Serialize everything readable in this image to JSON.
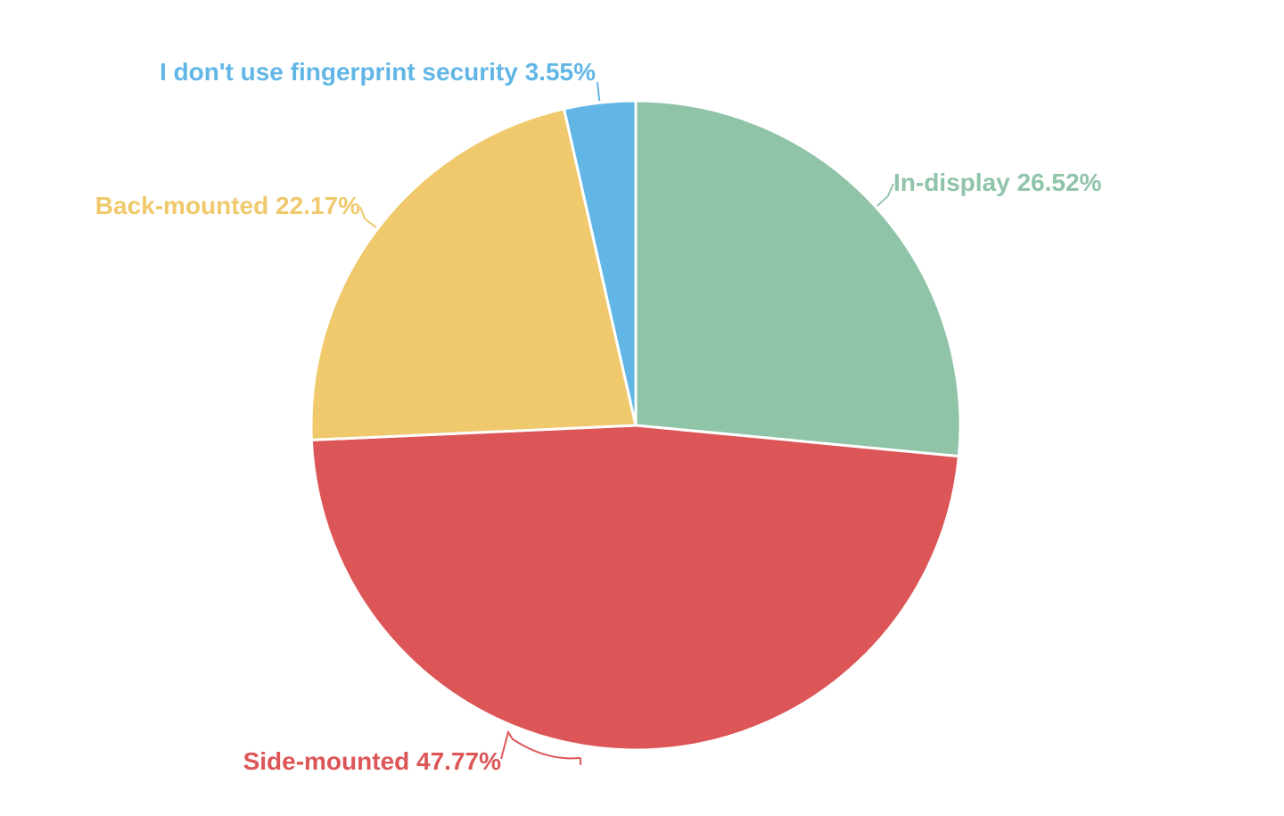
{
  "chart_data": {
    "type": "pie",
    "title": "",
    "slices": [
      {
        "name": "In-display",
        "value": 26.52,
        "value_label": "26.52%",
        "color": "#8fc4a8"
      },
      {
        "name": "Side-mounted",
        "value": 47.77,
        "value_label": "47.77%",
        "color": "#dc5557"
      },
      {
        "name": "Back-mounted",
        "value": 22.17,
        "value_label": "22.17%",
        "color": "#efc96b"
      },
      {
        "name": "I don't use fingerprint security",
        "value": 3.55,
        "value_label": "3.55%",
        "color": "#62b6e5"
      }
    ],
    "start_angle": "12 o'clock",
    "direction": "clockwise",
    "legend": "none",
    "labels": "outside with leader lines"
  }
}
